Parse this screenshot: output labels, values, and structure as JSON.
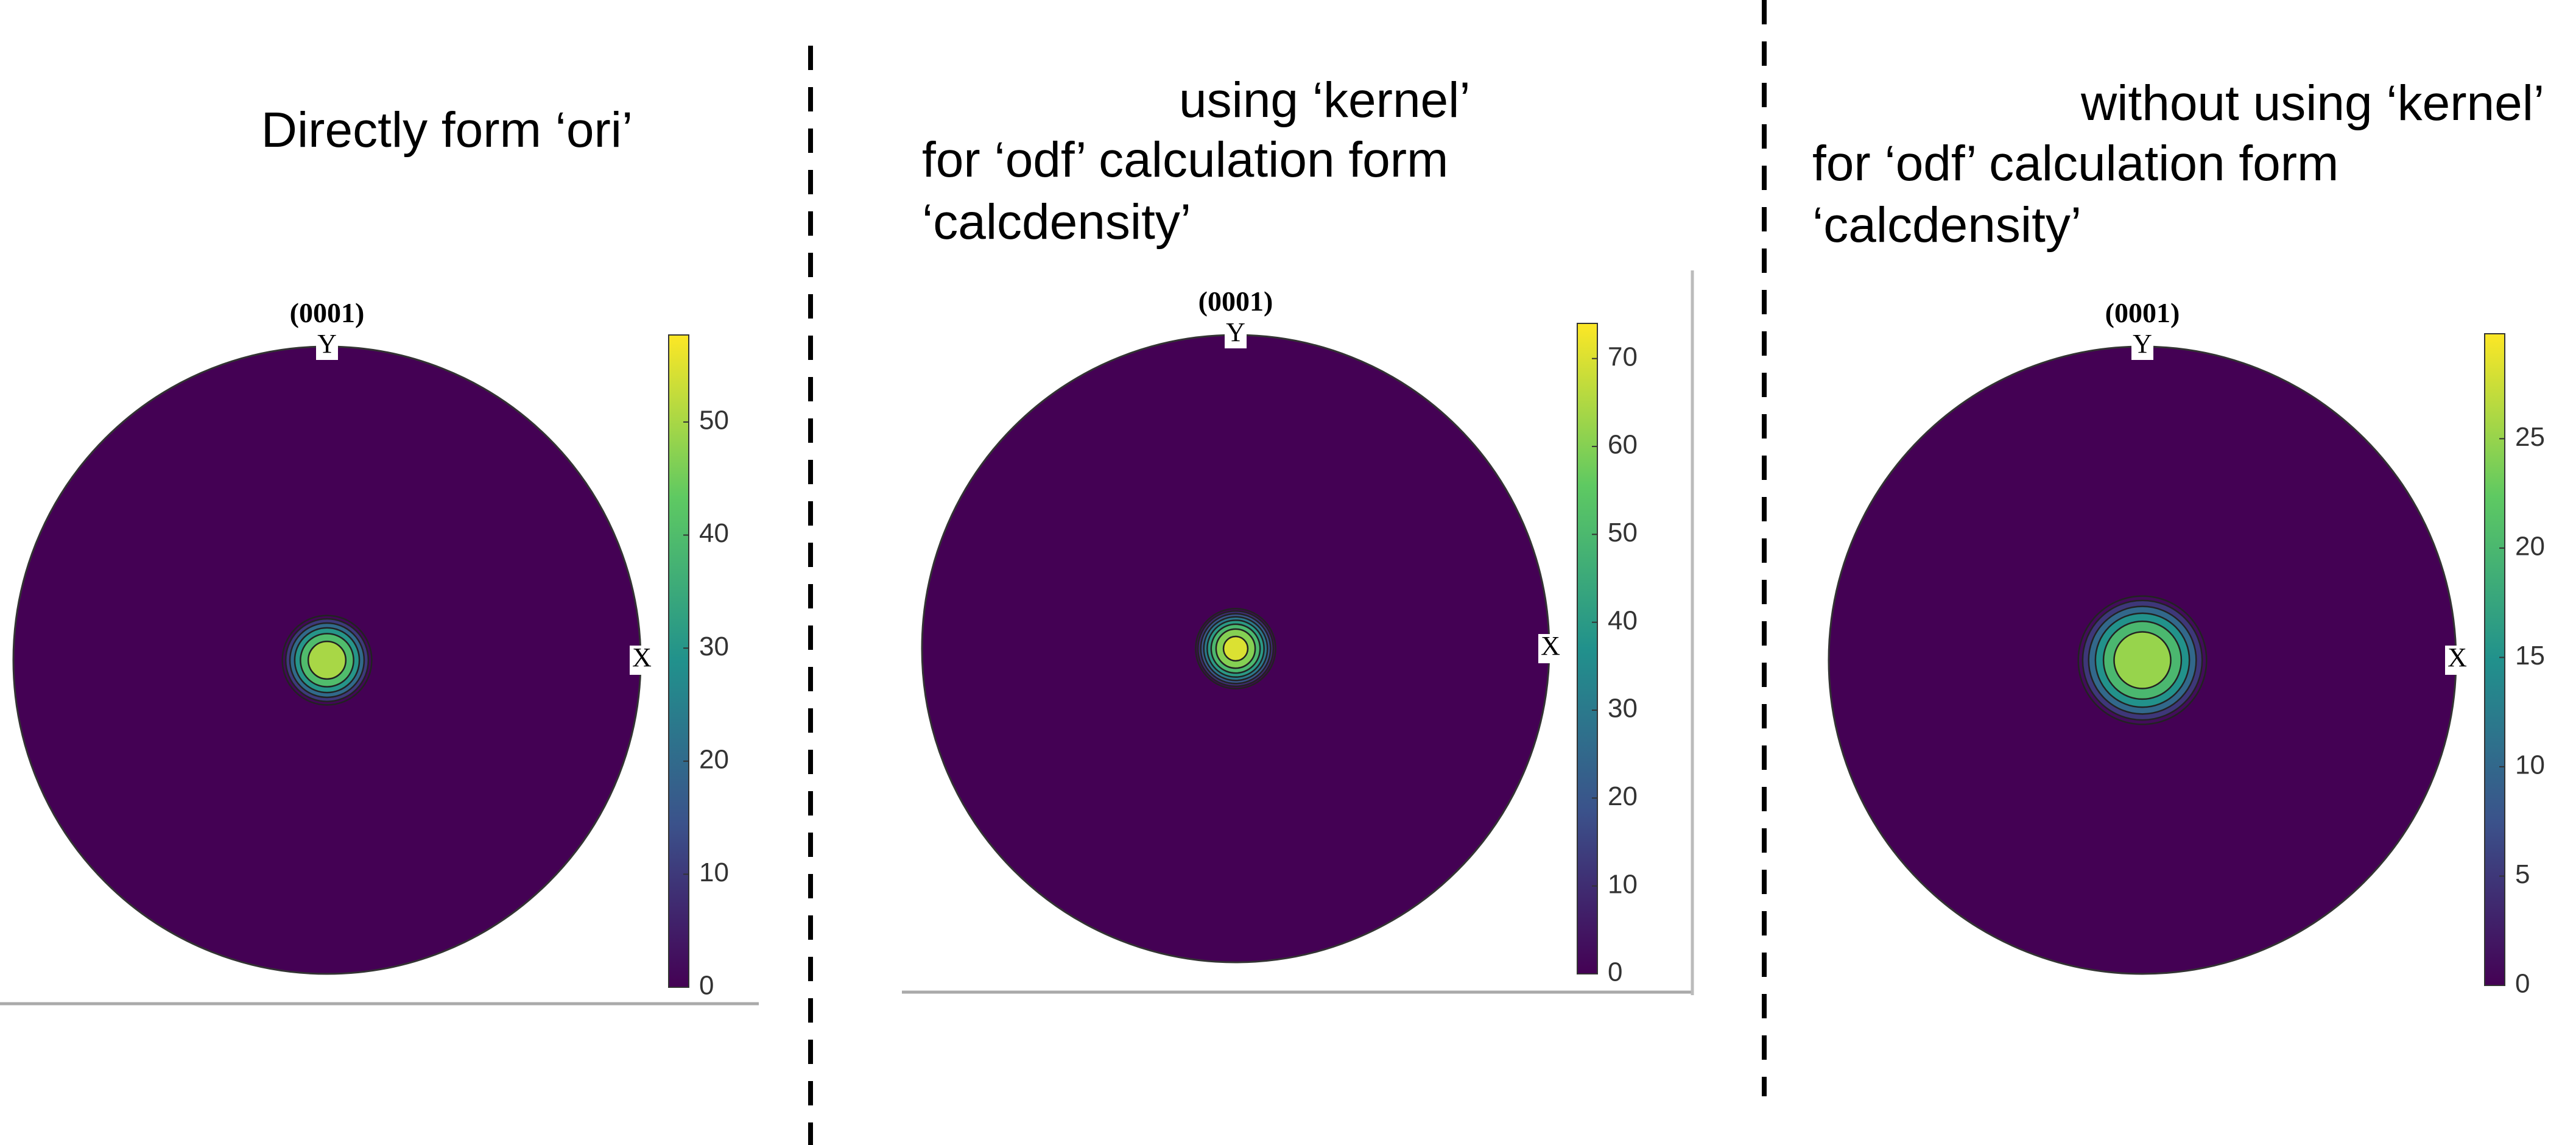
{
  "chart_data": [
    {
      "type": "polefigure",
      "title": [
        "Directly form ‘ori’"
      ],
      "pole": "(0001)",
      "x_label": "X",
      "y_label": "Y",
      "clim": [
        0,
        57.7
      ],
      "cticks": [
        0,
        10,
        20,
        30,
        40,
        50
      ],
      "levels": [
        1,
        10,
        20,
        30,
        40,
        50
      ],
      "colormap": [
        "#440154",
        "#3b528b",
        "#21918c",
        "#5ec962",
        "#fde725"
      ]
    },
    {
      "type": "polefigure",
      "title": [
        "using ‘kernel’",
        "for ‘odf’ calculation form",
        "‘calcdensity’"
      ],
      "pole": "(0001)",
      "x_label": "X",
      "y_label": "Y",
      "clim": [
        0,
        74
      ],
      "cticks": [
        0,
        10,
        20,
        30,
        40,
        50,
        60,
        70
      ],
      "levels": [
        1,
        10,
        20,
        30,
        40,
        50,
        60,
        70
      ],
      "colormap": [
        "#440154",
        "#3b528b",
        "#21918c",
        "#5ec962",
        "#fde725"
      ]
    },
    {
      "type": "polefigure",
      "title": [
        "without using ‘kernel’",
        "for ‘odf’ calculation form",
        "‘calcdensity’"
      ],
      "pole": "(0001)",
      "x_label": "X",
      "y_label": "Y",
      "clim": [
        0,
        29.8
      ],
      "cticks": [
        0,
        5,
        10,
        15,
        20,
        25
      ],
      "levels": [
        1,
        5,
        10,
        15,
        20,
        25
      ],
      "colormap": [
        "#440154",
        "#3b528b",
        "#21918c",
        "#5ec962",
        "#fde725"
      ]
    }
  ]
}
